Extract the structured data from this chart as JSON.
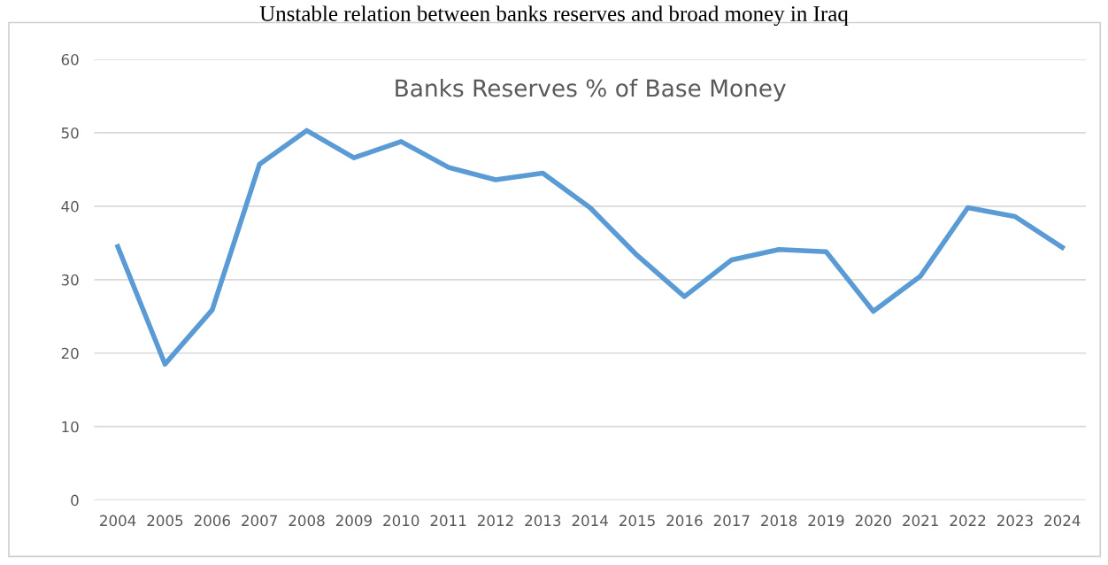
{
  "chart_data": {
    "type": "line",
    "title": "Unstable relation between banks reserves and broad money in Iraq",
    "subtitle": "Banks Reserves % of Base Money",
    "categories": [
      "2004",
      "2005",
      "2006",
      "2007",
      "2008",
      "2009",
      "2010",
      "2011",
      "2012",
      "2013",
      "2014",
      "2015",
      "2016",
      "2017",
      "2018",
      "2019",
      "2020",
      "2021",
      "2022",
      "2023",
      "2024"
    ],
    "series": [
      {
        "color": "#5b9bd5",
        "values": [
          34.5,
          18.5,
          25.9,
          45.7,
          50.3,
          46.6,
          48.8,
          45.3,
          43.6,
          44.5,
          39.8,
          33.3,
          27.7,
          32.7,
          34.1,
          33.8,
          25.7,
          30.5,
          39.8,
          38.6,
          34.4
        ]
      }
    ],
    "ylim": [
      0,
      60
    ],
    "yticks": [
      0,
      10,
      20,
      30,
      40,
      50,
      60
    ],
    "grid": "y",
    "legend": false,
    "marker": "none",
    "line_style": "solid"
  }
}
